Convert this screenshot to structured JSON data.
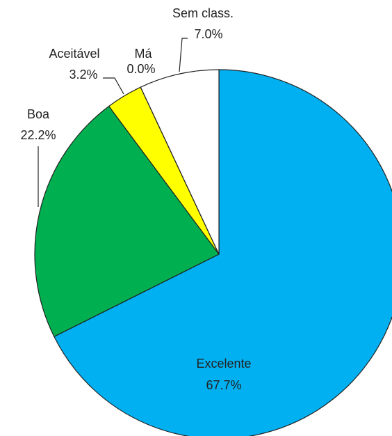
{
  "chart_data": {
    "type": "pie",
    "categories": [
      "Excelente",
      "Boa",
      "Aceitável",
      "Má",
      "Sem class."
    ],
    "values": [
      67.7,
      22.2,
      3.2,
      0.0,
      7.0
    ],
    "value_labels": [
      "67.7%",
      "22.2%",
      "3.2%",
      "0.0%",
      "7.0%"
    ],
    "colors": [
      "#00b0f0",
      "#00b050",
      "#ffff00",
      "#c00000",
      "#ffffff"
    ]
  }
}
